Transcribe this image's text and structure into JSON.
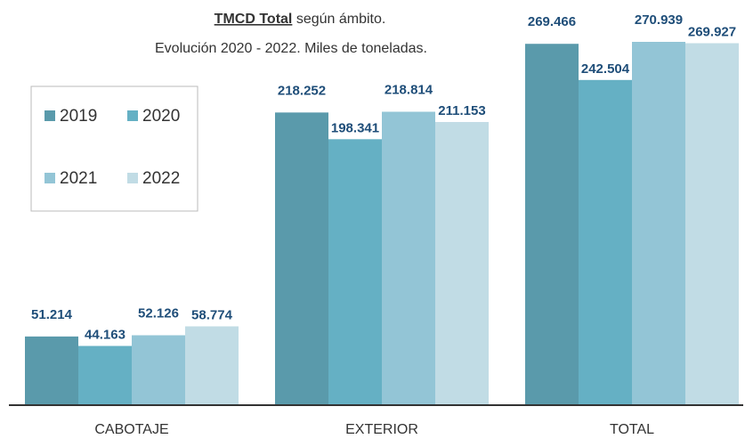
{
  "chart_data": {
    "type": "bar",
    "title": {
      "emphasis": "TMCD Total",
      "text": "según ámbito."
    },
    "subtitle": "Evolución 2020 - 2022. Miles de toneladas.",
    "categories": [
      "CABOTAJE",
      "EXTERIOR",
      "TOTAL"
    ],
    "series": [
      {
        "name": "2019",
        "color": "#5a9aab",
        "values": [
          51214,
          218252,
          269466
        ],
        "value_labels": [
          "51.214",
          "218.252",
          "269.466"
        ]
      },
      {
        "name": "2020",
        "color": "#65b0c4",
        "values": [
          44163,
          198341,
          242504
        ],
        "value_labels": [
          "44.163",
          "198.341",
          "242.504"
        ]
      },
      {
        "name": "2021",
        "color": "#93c5d6",
        "values": [
          52126,
          218814,
          270939
        ],
        "value_labels": [
          "52.126",
          "218.814",
          "270.939"
        ]
      },
      {
        "name": "2022",
        "color": "#c1dce5",
        "values": [
          58774,
          211153,
          269927
        ],
        "value_labels": [
          "58.774",
          "211.153",
          "269.927"
        ]
      }
    ],
    "legend": "upper left"
  }
}
